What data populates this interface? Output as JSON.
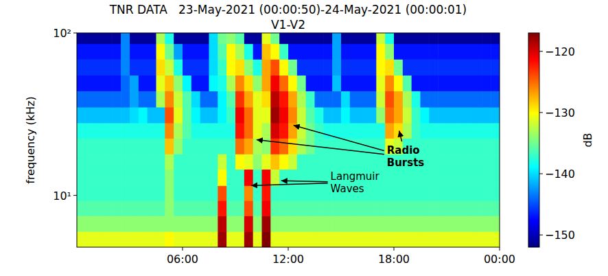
{
  "chart_data": {
    "type": "heatmap",
    "title": "TNR DATA   23-May-2021 (00:00:50)-24-May-2021 (00:00:01)",
    "subtitle": "V1-V2",
    "y_label": "frequency (kHz)",
    "log": "y",
    "xlim": [
      0,
      24
    ],
    "ylim": [
      4.8,
      100
    ],
    "xticks": [
      {
        "value": 6,
        "label": "06:00"
      },
      {
        "value": 12,
        "label": "12:00"
      },
      {
        "value": 18,
        "label": "18:00"
      },
      {
        "value": 24,
        "label": "00:00"
      }
    ],
    "yticks": [
      {
        "value": 10,
        "label": "10¹"
      },
      {
        "value": 100,
        "label": "10²"
      }
    ],
    "x": [
      0,
      0.5,
      1,
      1.5,
      2,
      2.5,
      3,
      3.5,
      4,
      4.5,
      5,
      5.5,
      6,
      6.5,
      7,
      7.5,
      8,
      8.5,
      9,
      9.5,
      10,
      10.5,
      11,
      11.5,
      12,
      12.5,
      13,
      13.5,
      14,
      14.5,
      15,
      15.5,
      16,
      16.5,
      17,
      17.5,
      18,
      18.5,
      19,
      19.5,
      20,
      20.5,
      21,
      21.5,
      22,
      22.5,
      23,
      23.5,
      24
    ],
    "y": [
      4.8,
      6,
      7.5,
      9.3,
      11.5,
      14.5,
      18,
      22.5,
      28,
      35,
      44,
      55,
      69,
      86,
      100
    ],
    "cells": [
      [
        -131,
        -131,
        -131,
        -131,
        -131,
        -131,
        -131,
        -131,
        -131,
        -131,
        -130,
        -131,
        -131,
        -131,
        -131,
        -131,
        -118,
        -131,
        -131,
        -118,
        -131,
        -117,
        -131,
        -131,
        -131,
        -131,
        -131,
        -131,
        -131,
        -131,
        -131,
        -131,
        -131,
        -131,
        -131,
        -131,
        -131,
        -131,
        -131,
        -131,
        -131,
        -131,
        -131,
        -131,
        -131,
        -131,
        -131,
        -131
      ],
      [
        -134,
        -134,
        -134,
        -134,
        -134,
        -134,
        -134,
        -134,
        -134,
        -134,
        -134,
        -134,
        -134,
        -134,
        -134,
        -134,
        -119,
        -134,
        -134,
        -120,
        -134,
        -118,
        -134,
        -134,
        -134,
        -134,
        -134,
        -134,
        -134,
        -134,
        -134,
        -134,
        -134,
        -134,
        -134,
        -134,
        -134,
        -134,
        -134,
        -134,
        -134,
        -134,
        -134,
        -134,
        -134,
        -134,
        -134,
        -134
      ],
      [
        -136,
        -136,
        -136,
        -136,
        -136,
        -136,
        -136,
        -136,
        -136,
        -136,
        -134,
        -136,
        -136,
        -136,
        -136,
        -136,
        -122,
        -136,
        -136,
        -124,
        -136,
        -121,
        -136,
        -136,
        -136,
        -136,
        -136,
        -136,
        -136,
        -136,
        -136,
        -136,
        -136,
        -136,
        -136,
        -136,
        -136,
        -136,
        -136,
        -136,
        -136,
        -136,
        -136,
        -136,
        -136,
        -136,
        -136,
        -136
      ],
      [
        -137,
        -137,
        -137,
        -137,
        -137,
        -137,
        -137,
        -137,
        -137,
        -137,
        -134,
        -137,
        -137,
        -137,
        -137,
        -137,
        -124,
        -137,
        -137,
        -126,
        -137,
        -122,
        -137,
        -137,
        -137,
        -137,
        -137,
        -137,
        -137,
        -137,
        -137,
        -137,
        -137,
        -137,
        -137,
        -137,
        -137,
        -137,
        -137,
        -137,
        -137,
        -137,
        -137,
        -137,
        -137,
        -137,
        -137,
        -137
      ],
      [
        -137,
        -137,
        -137,
        -137,
        -137,
        -137,
        -137,
        -137,
        -137,
        -137,
        -134,
        -137,
        -137,
        -137,
        -137,
        -137,
        -130,
        -137,
        -137,
        -121,
        -137,
        -121,
        -132,
        -137,
        -137,
        -137,
        -137,
        -137,
        -137,
        -137,
        -137,
        -137,
        -137,
        -137,
        -137,
        -137,
        -137,
        -137,
        -137,
        -137,
        -137,
        -137,
        -137,
        -137,
        -137,
        -137,
        -137,
        -137
      ],
      [
        -137,
        -137,
        -137,
        -137,
        -137,
        -137,
        -137,
        -137,
        -137,
        -137,
        -133,
        -137,
        -137,
        -137,
        -137,
        -137,
        -132,
        -137,
        -130,
        -131,
        -134,
        -131,
        -128,
        -130,
        -132,
        -137,
        -137,
        -137,
        -137,
        -137,
        -137,
        -137,
        -137,
        -137,
        -137,
        -137,
        -137,
        -137,
        -137,
        -137,
        -137,
        -137,
        -137,
        -137,
        -137,
        -137,
        -137,
        -137
      ],
      [
        -137,
        -137,
        -137,
        -137,
        -137,
        -137,
        -137,
        -137,
        -137,
        -137,
        -128,
        -134,
        -137,
        -137,
        -137,
        -137,
        -137,
        -137,
        -125,
        -127,
        -133,
        -134,
        -123,
        -125,
        -129,
        -133,
        -135,
        -137,
        -137,
        -137,
        -137,
        -137,
        -137,
        -137,
        -137,
        -131,
        -132,
        -137,
        -137,
        -137,
        -137,
        -137,
        -137,
        -137,
        -137,
        -137,
        -137,
        -137
      ],
      [
        -138,
        -138,
        -138,
        -138,
        -138,
        -138,
        -138,
        -138,
        -138,
        -138,
        -126,
        -133,
        -136,
        -138,
        -138,
        -138,
        -138,
        -138,
        -122,
        -125,
        -131,
        -133,
        -120,
        -122,
        -127,
        -132,
        -135,
        -137,
        -138,
        -138,
        -138,
        -138,
        -138,
        -138,
        -138,
        -127,
        -129,
        -133,
        -137,
        -138,
        -138,
        -138,
        -138,
        -138,
        -138,
        -138,
        -138,
        -138
      ],
      [
        -141,
        -141,
        -141,
        -141,
        -141,
        -141,
        -140,
        -139,
        -141,
        -141,
        -124,
        -131,
        -136,
        -139,
        -141,
        -141,
        -139,
        -137,
        -121,
        -125,
        -131,
        -131,
        -118,
        -121,
        -126,
        -132,
        -136,
        -138,
        -141,
        -141,
        -139,
        -141,
        -141,
        -141,
        -134,
        -125,
        -127,
        -132,
        -137,
        -139,
        -141,
        -141,
        -141,
        -141,
        -141,
        -141,
        -141,
        -141
      ],
      [
        -144,
        -144,
        -144,
        -144,
        -144,
        -144,
        -142,
        -144,
        -144,
        -133,
        -126,
        -132,
        -136,
        -140,
        -144,
        -144,
        -139,
        -136,
        -123,
        -127,
        -131,
        -129,
        -119,
        -122,
        -127,
        -133,
        -137,
        -144,
        -144,
        -144,
        -140,
        -144,
        -144,
        -144,
        -132,
        -124,
        -127,
        -133,
        -138,
        -144,
        -144,
        -144,
        -144,
        -144,
        -144,
        -144,
        -144,
        -144
      ],
      [
        -147,
        -147,
        -147,
        -147,
        -147,
        -144,
        -142,
        -147,
        -147,
        -131,
        -128,
        -134,
        -139,
        -147,
        -147,
        -139,
        -138,
        -133,
        -126,
        -129,
        -134,
        -127,
        -121,
        -125,
        -130,
        -135,
        -147,
        -147,
        -147,
        -141,
        -147,
        -147,
        -147,
        -147,
        -131,
        -126,
        -130,
        -136,
        -147,
        -147,
        -147,
        -147,
        -147,
        -147,
        -147,
        -147,
        -147,
        -147
      ],
      [
        -146,
        -146,
        -146,
        -146,
        -146,
        -143,
        -146,
        -146,
        -146,
        -129,
        -132,
        -138,
        -146,
        -146,
        -146,
        -140,
        -137,
        -130,
        -129,
        -134,
        -138,
        -127,
        -124,
        -130,
        -135,
        -146,
        -146,
        -146,
        -146,
        -142,
        -146,
        -146,
        -146,
        -146,
        -130,
        -129,
        -135,
        -146,
        -146,
        -146,
        -146,
        -146,
        -146,
        -146,
        -146,
        -146,
        -146,
        -146
      ],
      [
        -147,
        -147,
        -147,
        -147,
        -147,
        -143,
        -147,
        -147,
        -147,
        -130,
        -135,
        -142,
        -147,
        -147,
        -147,
        -140,
        -136,
        -130,
        -133,
        -138,
        -147,
        -128,
        -130,
        -137,
        -147,
        -147,
        -147,
        -147,
        -147,
        -142,
        -147,
        -147,
        -147,
        -147,
        -130,
        -134,
        -147,
        -147,
        -147,
        -147,
        -147,
        -147,
        -147,
        -147,
        -147,
        -147,
        -147,
        -147
      ],
      [
        -151,
        -151,
        -151,
        -151,
        -151,
        -143,
        -151,
        -151,
        -151,
        -133,
        -138,
        -151,
        -151,
        -151,
        -151,
        -140,
        -135,
        -134,
        -136,
        -151,
        -151,
        -131,
        -135,
        -151,
        -151,
        -151,
        -151,
        -151,
        -151,
        -142,
        -151,
        -151,
        -151,
        -151,
        -132,
        -138,
        -151,
        -151,
        -151,
        -151,
        -151,
        -151,
        -151,
        -151,
        -151,
        -151,
        -151,
        -151
      ]
    ],
    "colorbar": {
      "label": "dB",
      "range": [
        -152,
        -117
      ],
      "ticks": [
        {
          "value": -150,
          "label": "−150"
        },
        {
          "value": -140,
          "label": "−140"
        },
        {
          "value": -130,
          "label": "−130"
        },
        {
          "value": -120,
          "label": "−120"
        }
      ]
    },
    "annotations": [
      {
        "text": "Radio Bursts",
        "x": 17.6,
        "y": 18,
        "arrows": [
          [
            12.3,
            27
          ],
          [
            10.2,
            22
          ],
          [
            18.3,
            25
          ]
        ]
      },
      {
        "text": "Langmuir Waves",
        "x": 14.4,
        "y": 12.5,
        "arrows": [
          [
            9.9,
            11.5
          ],
          [
            11.6,
            12.3
          ]
        ]
      }
    ]
  }
}
